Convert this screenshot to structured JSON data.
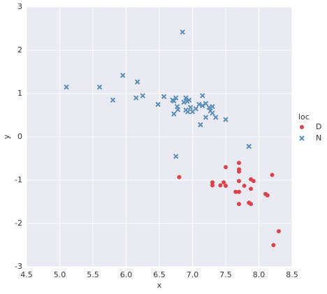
{
  "chart_data": {
    "type": "scatter",
    "x_label": "x",
    "y_label": "y",
    "legend_title": "loc",
    "xlim": [
      4.5,
      8.5
    ],
    "ylim": [
      -3,
      3
    ],
    "xticks": [
      4.5,
      {
        "value": 5,
        "label": "5.0"
      },
      5.5,
      {
        "value": 6,
        "label": "6.0"
      },
      6.5,
      {
        "value": 7,
        "label": "7.0"
      },
      7.5,
      {
        "value": 8,
        "label": "8.0"
      },
      8.5
    ],
    "yticks": [
      -3,
      -2,
      -1,
      0,
      1,
      2,
      3
    ],
    "grid": true,
    "background": "#eaeaf2",
    "legend": "right",
    "series": [
      {
        "name": "D",
        "color": "#d9454a",
        "marker": "circle",
        "x": [
          6.8,
          7.3,
          7.3,
          7.42,
          7.47,
          7.5,
          7.5,
          7.65,
          7.7,
          7.7,
          7.7,
          7.7,
          7.7,
          7.7,
          7.78,
          7.85,
          7.88,
          7.88,
          7.88,
          7.92,
          8.1,
          8.13,
          8.2,
          8.22,
          8.3
        ],
        "values": [
          -0.93,
          -1.05,
          -1.12,
          -1.12,
          -1.05,
          -0.7,
          -1.13,
          -1.27,
          -0.6,
          -0.75,
          -0.8,
          -1.02,
          -1.27,
          -1.55,
          -1.13,
          -1.52,
          -0.98,
          -1.55,
          -1.2,
          -1.02,
          -1.32,
          -1.35,
          -0.88,
          -2.5,
          -2.18
        ]
      },
      {
        "name": "N",
        "color": "#5a8fb8",
        "marker": "x",
        "x": [
          5.1,
          5.6,
          5.8,
          5.95,
          6.15,
          6.17,
          6.25,
          6.48,
          6.57,
          6.7,
          6.72,
          6.72,
          6.75,
          6.77,
          6.78,
          6.85,
          6.87,
          6.9,
          6.9,
          6.92,
          6.93,
          6.95,
          6.97,
          7.0,
          7.05,
          7.1,
          7.12,
          7.15,
          7.15,
          7.2,
          7.2,
          7.25,
          7.27,
          7.3,
          7.3,
          7.35,
          7.5,
          6.75,
          7.85
        ],
        "values": [
          1.15,
          1.15,
          0.85,
          1.42,
          0.9,
          1.27,
          0.95,
          0.75,
          0.93,
          0.85,
          0.83,
          0.53,
          0.9,
          0.7,
          0.63,
          2.42,
          0.8,
          0.9,
          0.62,
          0.82,
          0.58,
          0.85,
          0.68,
          0.58,
          0.65,
          0.75,
          0.28,
          0.95,
          0.72,
          0.77,
          0.45,
          0.68,
          0.6,
          0.7,
          0.55,
          0.45,
          0.4,
          -0.45,
          -0.22
        ]
      }
    ]
  }
}
